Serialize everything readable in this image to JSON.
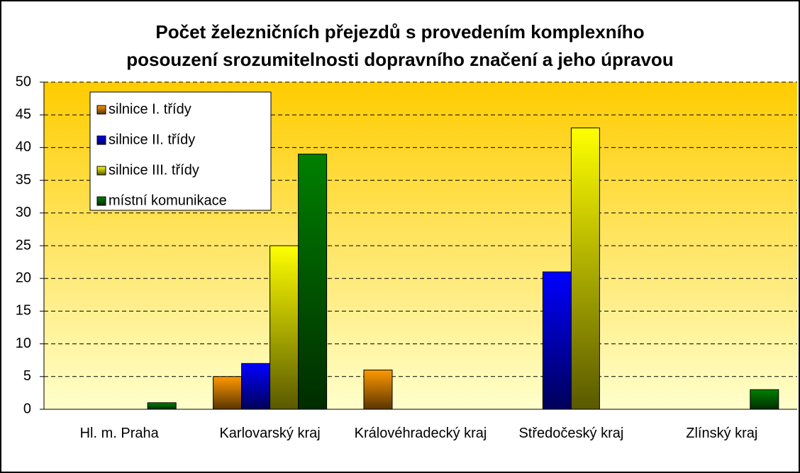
{
  "chart_data": {
    "type": "bar",
    "title": [
      "Počet železničních přejezdů s provedením komplexního",
      "posouzení srozumitelnosti dopravního značení a jeho úpravou"
    ],
    "categories": [
      "Hl. m. Praha",
      "Karlovarský kraj",
      "Královéhradecký kraj",
      "Středočeský kraj",
      "Zlínský kraj"
    ],
    "series": [
      {
        "name": "silnice I. třídy",
        "color": "#ff9900",
        "values": [
          null,
          5,
          6,
          null,
          null
        ]
      },
      {
        "name": "silnice II. třídy",
        "color": "#0000ff",
        "values": [
          null,
          7,
          null,
          21,
          null
        ]
      },
      {
        "name": "silnice III. třídy",
        "color": "#ffff00",
        "values": [
          null,
          25,
          null,
          43,
          null
        ]
      },
      {
        "name": "místní komunikace",
        "color": "#008000",
        "values": [
          1,
          39,
          null,
          null,
          3
        ]
      }
    ],
    "ylim": [
      0,
      50
    ],
    "yticks": [
      0,
      5,
      10,
      15,
      20,
      25,
      30,
      35,
      40,
      45,
      50
    ],
    "grid": true,
    "legend": "top-left"
  }
}
